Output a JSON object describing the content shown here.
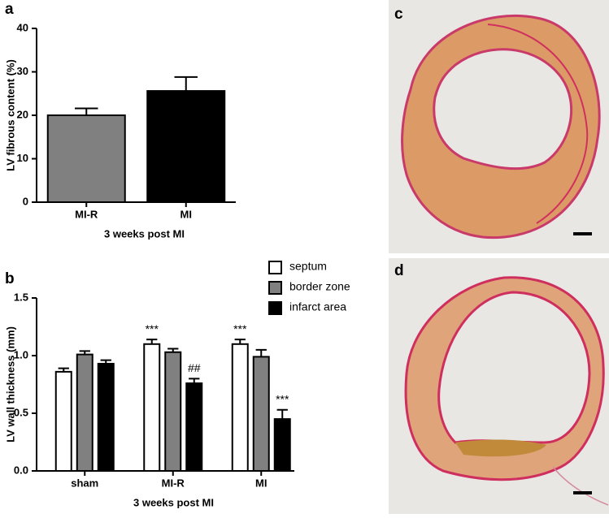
{
  "chart_data": [
    {
      "type": "bar",
      "panel_label": "a",
      "ylabel": "LV fibrous content (%)",
      "xlabel": "3 weeks post MI",
      "categories": [
        "MI-R",
        "MI"
      ],
      "values": [
        20,
        25.6
      ],
      "errors": [
        1.6,
        3.2
      ],
      "colors": [
        "#808080",
        "#000000"
      ],
      "ylim": [
        0,
        40
      ],
      "yticks": [
        0,
        10,
        20,
        30,
        40
      ]
    },
    {
      "type": "grouped-bar",
      "panel_label": "b",
      "ylabel": "LV wall thickness (mm)",
      "xlabel": "3 weeks post MI",
      "categories": [
        "sham",
        "MI-R",
        "MI"
      ],
      "series": [
        {
          "name": "septum",
          "color": "#ffffff",
          "values": [
            0.86,
            1.1,
            1.1
          ],
          "errors": [
            0.03,
            0.04,
            0.04
          ]
        },
        {
          "name": "border zone",
          "color": "#808080",
          "values": [
            1.01,
            1.03,
            0.99
          ],
          "errors": [
            0.03,
            0.03,
            0.06
          ]
        },
        {
          "name": "infarct area",
          "color": "#000000",
          "values": [
            0.93,
            0.76,
            0.45
          ],
          "errors": [
            0.03,
            0.04,
            0.08
          ]
        }
      ],
      "annotations": [
        {
          "text": "***",
          "category": "MI-R",
          "series": "septum"
        },
        {
          "text": "##",
          "category": "MI-R",
          "series": "infarct area"
        },
        {
          "text": "***",
          "category": "MI",
          "series": "septum"
        },
        {
          "text": "***",
          "category": "MI",
          "series": "infarct area"
        }
      ],
      "ylim": [
        0,
        1.5
      ],
      "yticks": [
        {
          "value": 0,
          "label": "0.0"
        },
        0.5,
        {
          "value": 1,
          "label": "1.0"
        },
        1.5
      ],
      "legend": "top-right"
    }
  ],
  "images": [
    {
      "panel_label": "c"
    },
    {
      "panel_label": "d"
    }
  ]
}
